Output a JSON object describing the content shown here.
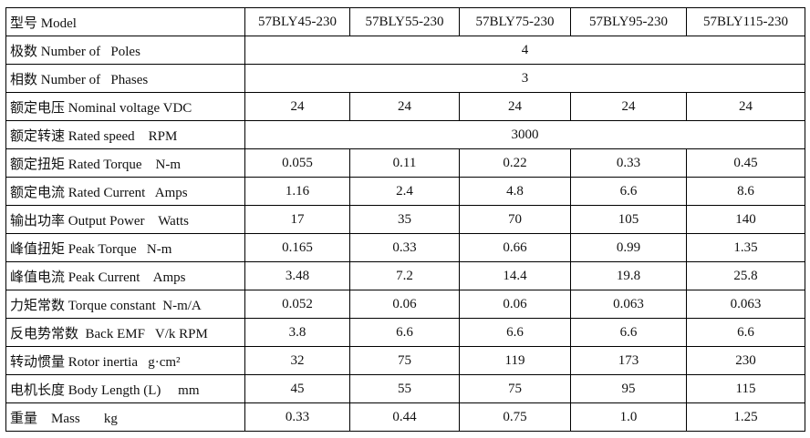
{
  "table": {
    "header": [
      "型号 Model",
      "57BLY45-230",
      "57BLY55-230",
      "57BLY75-230",
      "57BLY95-230",
      "57BLY115-230"
    ],
    "rows": [
      [
        "极数 Number of   Poles",
        "4"
      ],
      [
        "相数 Number of   Phases",
        "3"
      ],
      [
        "额定电压 Nominal voltage VDC",
        "24",
        "24",
        "24",
        "24",
        "24"
      ],
      [
        "额定转速 Rated speed    RPM",
        "3000"
      ],
      [
        "额定扭矩 Rated Torque    N-m",
        "0.055",
        "0.11",
        "0.22",
        "0.33",
        "0.45"
      ],
      [
        "额定电流 Rated Current   Amps",
        "1.16",
        "2.4",
        "4.8",
        "6.6",
        "8.6"
      ],
      [
        "输出功率 Output Power    Watts",
        "17",
        "35",
        "70",
        "105",
        "140"
      ],
      [
        "峰值扭矩 Peak Torque   N-m",
        "0.165",
        "0.33",
        "0.66",
        "0.99",
        "1.35"
      ],
      [
        "峰值电流 Peak Current    Amps",
        "3.48",
        "7.2",
        "14.4",
        "19.8",
        "25.8"
      ],
      [
        "力矩常数 Torque constant  N-m/A",
        "0.052",
        "0.06",
        "0.06",
        "0.063",
        "0.063"
      ],
      [
        "反电势常数  Back EMF   V/k RPM",
        "3.8",
        "6.6",
        "6.6",
        "6.6",
        "6.6"
      ],
      [
        "转动惯量 Rotor inertia   g·cm²",
        "32",
        "75",
        "119",
        "173",
        "230"
      ],
      [
        "电机长度 Body Length (L)     mm",
        "45",
        "55",
        "75",
        "95",
        "115"
      ],
      [
        "重量    Mass       kg",
        "0.33",
        "0.44",
        "0.75",
        "1.0",
        "1.25"
      ]
    ]
  }
}
